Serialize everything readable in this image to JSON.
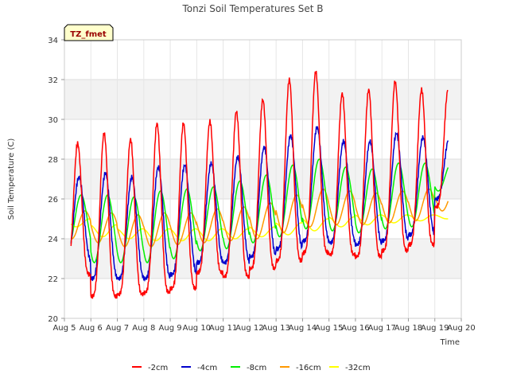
{
  "chart_data": {
    "type": "line",
    "title": "Tonzi Soil Temperatures Set B",
    "xlabel": "Time",
    "ylabel": "Soil Temperature (C)",
    "badge": "TZ_fmet",
    "xlim": [
      5,
      20
    ],
    "ylim": [
      20,
      34
    ],
    "xticks": [
      5,
      6,
      7,
      8,
      9,
      10,
      11,
      12,
      13,
      14,
      15,
      16,
      17,
      18,
      19,
      20
    ],
    "xtick_labels": [
      "Aug 5",
      "Aug 6",
      "Aug 7",
      "Aug 8",
      "Aug 9",
      "Aug 10",
      "Aug 11",
      "Aug 12",
      "Aug 13",
      "Aug 14",
      "Aug 15",
      "Aug 16",
      "Aug 17",
      "Aug 18",
      "Aug 19",
      "Aug 20"
    ],
    "yticks": [
      20,
      22,
      24,
      26,
      28,
      30,
      32,
      34
    ],
    "ytick_labels": [
      "20",
      "22",
      "24",
      "26",
      "28",
      "30",
      "32",
      "34"
    ],
    "legend_position": "bottom",
    "grid": true,
    "series": [
      {
        "name": "-2cm",
        "color": "#ff0000",
        "phase": 0.5,
        "sharpness": 2.2,
        "data_start": 5.25,
        "data_end": 19.5,
        "days": [
          5,
          6,
          7,
          8,
          9,
          10,
          11,
          12,
          13,
          14,
          15,
          16,
          17,
          18,
          19
        ],
        "mins": [
          22.2,
          21.1,
          21.2,
          21.3,
          21.5,
          22.3,
          22.1,
          22.5,
          22.9,
          23.3,
          23.2,
          23.1,
          23.4,
          23.7,
          25.6
        ],
        "maxs": [
          28.8,
          29.3,
          29.0,
          29.8,
          29.8,
          29.9,
          30.4,
          31.0,
          32.0,
          32.4,
          31.3,
          31.5,
          31.9,
          31.5,
          31.5
        ]
      },
      {
        "name": "-4cm",
        "color": "#0000cc",
        "phase": 0.55,
        "sharpness": 1.5,
        "data_start": 5.25,
        "data_end": 19.5,
        "days": [
          5,
          6,
          7,
          8,
          9,
          10,
          11,
          12,
          13,
          14,
          15,
          16,
          17,
          18,
          19
        ],
        "mins": [
          22.9,
          22.0,
          22.0,
          22.0,
          22.2,
          22.8,
          22.8,
          23.1,
          23.5,
          23.9,
          23.8,
          23.7,
          23.9,
          24.2,
          26.0
        ],
        "maxs": [
          27.1,
          27.3,
          27.1,
          27.6,
          27.7,
          27.8,
          28.1,
          28.6,
          29.2,
          29.6,
          28.9,
          28.9,
          29.3,
          29.1,
          29.1
        ]
      },
      {
        "name": "-8cm",
        "color": "#00ee00",
        "phase": 0.63,
        "sharpness": 1.0,
        "data_start": 5.25,
        "data_end": 19.5,
        "days": [
          5,
          6,
          7,
          8,
          9,
          10,
          11,
          12,
          13,
          14,
          15,
          16,
          17,
          18,
          19
        ],
        "mins": [
          23.5,
          22.8,
          22.8,
          22.8,
          23.0,
          23.4,
          23.5,
          23.8,
          24.1,
          24.5,
          24.4,
          24.3,
          24.5,
          24.6,
          26.4
        ],
        "maxs": [
          26.2,
          26.2,
          26.1,
          26.4,
          26.5,
          26.6,
          26.9,
          27.2,
          27.7,
          28.0,
          27.6,
          27.5,
          27.8,
          27.8,
          27.8
        ]
      },
      {
        "name": "-16cm",
        "color": "#ff9900",
        "phase": 0.78,
        "sharpness": 1.0,
        "data_start": 5.25,
        "data_end": 19.5,
        "days": [
          5,
          6,
          7,
          8,
          9,
          10,
          11,
          12,
          13,
          14,
          15,
          16,
          17,
          18,
          19
        ],
        "mins": [
          24.0,
          23.8,
          23.6,
          23.6,
          23.7,
          23.8,
          23.9,
          24.0,
          24.3,
          24.6,
          24.7,
          24.7,
          24.8,
          24.9,
          25.4
        ],
        "maxs": [
          25.4,
          25.3,
          25.2,
          25.3,
          25.3,
          25.5,
          25.6,
          25.8,
          26.2,
          26.5,
          26.4,
          26.3,
          26.4,
          26.5,
          26.6
        ]
      },
      {
        "name": "-32cm",
        "color": "#ffff00",
        "phase": 0.95,
        "sharpness": 1.0,
        "data_start": 5.25,
        "data_end": 19.5,
        "days": [
          5,
          6,
          7,
          8,
          9,
          10,
          11,
          12,
          13,
          14,
          15,
          16,
          17,
          18,
          19
        ],
        "mins": [
          24.6,
          24.1,
          24.0,
          23.9,
          23.9,
          23.9,
          24.0,
          24.1,
          24.2,
          24.4,
          24.6,
          24.7,
          24.8,
          24.9,
          25.0
        ],
        "maxs": [
          25.0,
          24.7,
          24.5,
          24.5,
          24.5,
          24.5,
          24.5,
          24.6,
          24.8,
          25.0,
          25.1,
          25.2,
          25.2,
          25.2,
          25.2
        ]
      }
    ]
  }
}
